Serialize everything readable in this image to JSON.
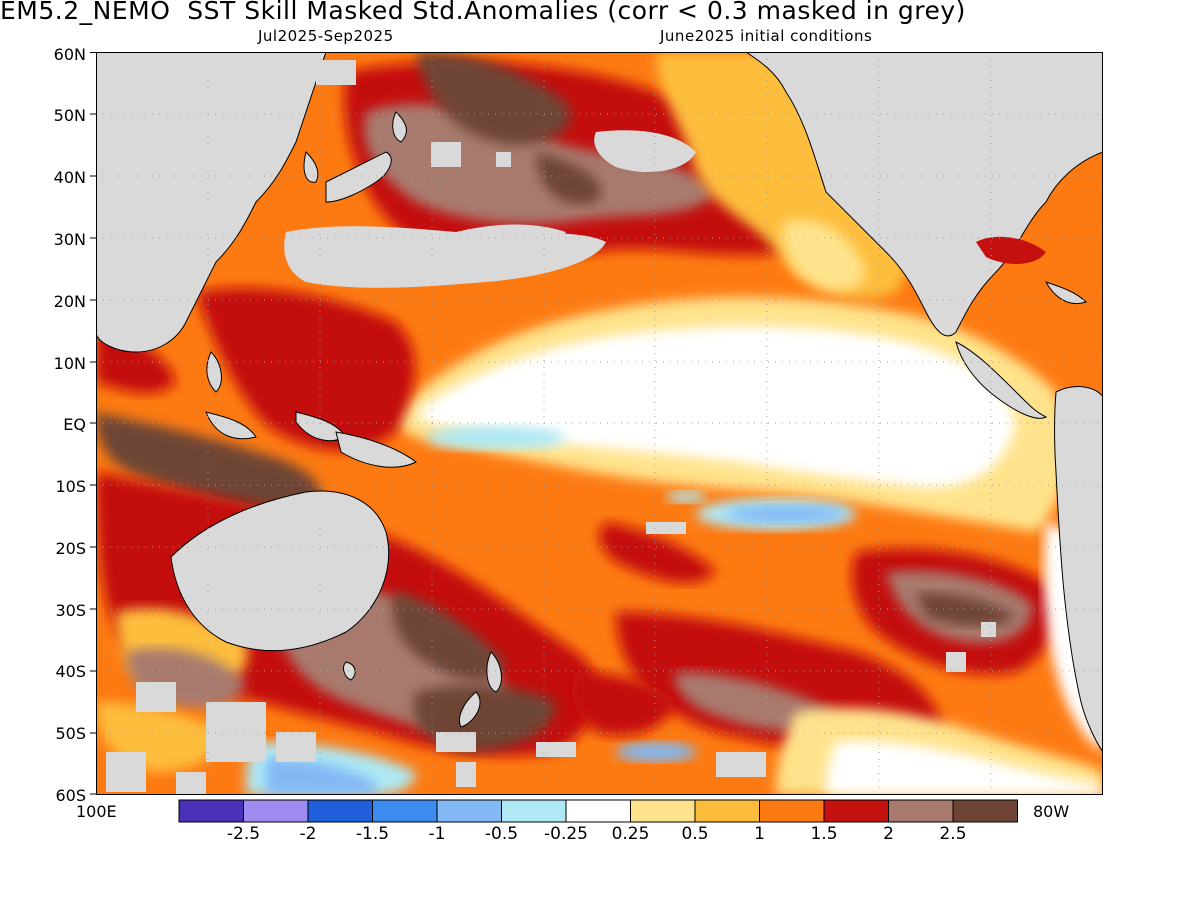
{
  "header": {
    "title": "EM5.2_NEMO  SST Skill Masked Std.Anomalies (corr < 0.3 masked in grey)",
    "period": "Jul2025-Sep2025",
    "init": "June2025 initial conditions"
  },
  "axes": {
    "lat_labels": [
      "60N",
      "50N",
      "40N",
      "30N",
      "20N",
      "10N",
      "EQ",
      "10S",
      "20S",
      "30S",
      "40S",
      "50S",
      "60S"
    ],
    "lon_left": "100E",
    "lon_right": "80W"
  },
  "colorbar": {
    "colors": [
      "#4a2fb8",
      "#a08cf0",
      "#1f5fdc",
      "#3c8cf0",
      "#82b9f5",
      "#aee9f5",
      "#ffffff",
      "#ffe38c",
      "#fdbd3c",
      "#fd7a12",
      "#c4100e",
      "#a87a6e",
      "#6e4434"
    ],
    "tick_labels": [
      "-2.5",
      "-2",
      "-1.5",
      "-1",
      "-0.5",
      "-0.25",
      "0.25",
      "0.5",
      "1",
      "1.5",
      "2",
      "2.5"
    ]
  },
  "map_colors": {
    "land": "#d9d9d9",
    "mask": "#d9d9d9",
    "coast": "#000000",
    "grid": "#a0a0a0"
  }
}
